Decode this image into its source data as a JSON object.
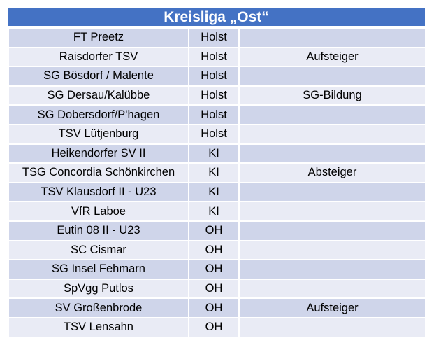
{
  "title": "Kreisliga „Ost“",
  "colors": {
    "header_bg": "#4472c4",
    "row_dark": "#cfd5ea",
    "row_light": "#e9ebf5",
    "text": "#000000"
  },
  "rows": [
    {
      "team": "FT Preetz",
      "region": "Holst",
      "note": ""
    },
    {
      "team": "Raisdorfer TSV",
      "region": "Holst",
      "note": "Aufsteiger"
    },
    {
      "team": "SG Bösdorf / Malente",
      "region": "Holst",
      "note": ""
    },
    {
      "team": "SG Dersau/Kalübbe",
      "region": "Holst",
      "note": "SG-Bildung"
    },
    {
      "team": "SG Dobersdorf/P'hagen",
      "region": "Holst",
      "note": ""
    },
    {
      "team": "TSV Lütjenburg",
      "region": "Holst",
      "note": ""
    },
    {
      "team": "Heikendorfer SV II",
      "region": "KI",
      "note": ""
    },
    {
      "team": "TSG Concordia Schönkirchen",
      "region": "KI",
      "note": "Absteiger"
    },
    {
      "team": "TSV Klausdorf II - U23",
      "region": "KI",
      "note": ""
    },
    {
      "team": "VfR Laboe",
      "region": "KI",
      "note": ""
    },
    {
      "team": "Eutin 08 II - U23",
      "region": "OH",
      "note": ""
    },
    {
      "team": "SC Cismar",
      "region": "OH",
      "note": ""
    },
    {
      "team": "SG Insel Fehmarn",
      "region": "OH",
      "note": ""
    },
    {
      "team": "SpVgg Putlos",
      "region": "OH",
      "note": ""
    },
    {
      "team": "SV Großenbrode",
      "region": "OH",
      "note": "Aufsteiger"
    },
    {
      "team": "TSV Lensahn",
      "region": "OH",
      "note": ""
    }
  ]
}
